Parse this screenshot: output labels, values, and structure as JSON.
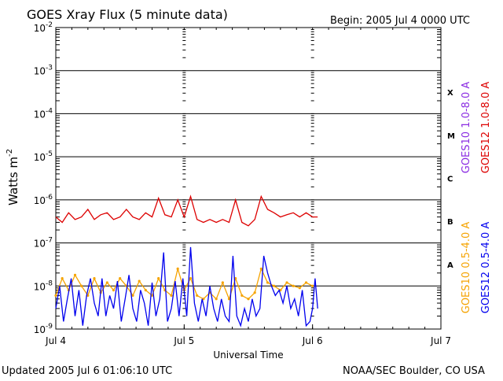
{
  "header": {
    "title": "GOES Xray Flux (5 minute data)",
    "begin": "Begin:  2005 Jul 4 0000 UTC"
  },
  "footer": {
    "updated": "Updated 2005 Jul  6 01:06:10 UTC",
    "credit": "NOAA/SEC Boulder, CO USA"
  },
  "chart_data": {
    "type": "line",
    "title": "GOES Xray Flux (5 minute data)",
    "xlabel": "Universal Time",
    "ylabel_main": "Watts m",
    "ylabel_exp": "-2",
    "yscale": "log",
    "ylim": [
      1e-09,
      0.01
    ],
    "xlim": [
      0,
      3
    ],
    "x_unit": "days since Jul 4 0000 UTC",
    "x_ticks": [
      {
        "x": 0,
        "label": "Jul 4"
      },
      {
        "x": 1,
        "label": "Jul 5"
      },
      {
        "x": 2,
        "label": "Jul 6"
      },
      {
        "x": 3,
        "label": "Jul 7"
      }
    ],
    "y_ticks": [
      {
        "exp": -9,
        "base": "10",
        "sup": "-9"
      },
      {
        "exp": -8,
        "base": "10",
        "sup": "-8"
      },
      {
        "exp": -7,
        "base": "10",
        "sup": "-7"
      },
      {
        "exp": -6,
        "base": "10",
        "sup": "-6"
      },
      {
        "exp": -5,
        "base": "10",
        "sup": "-5"
      },
      {
        "exp": -4,
        "base": "10",
        "sup": "-4"
      },
      {
        "exp": -3,
        "base": "10",
        "sup": "-3"
      },
      {
        "exp": -2,
        "base": "10",
        "sup": "-2"
      }
    ],
    "flare_classes": [
      {
        "label": "A",
        "exp_mid": -7.5
      },
      {
        "label": "B",
        "exp_mid": -6.5
      },
      {
        "label": "C",
        "exp_mid": -5.5
      },
      {
        "label": "M",
        "exp_mid": -4.5
      },
      {
        "label": "X",
        "exp_mid": -3.5
      }
    ],
    "grid": true,
    "legend_right": [
      {
        "name": "GOES10 1.0-8.0 A",
        "color": "#8a2be2"
      },
      {
        "name": "GOES12 1.0-8.0 A",
        "color": "#dd0000"
      },
      {
        "name": "GOES10 0.5-4.0 A",
        "color": "#f5a300"
      },
      {
        "name": "GOES12 0.5-4.0 A",
        "color": "#0000ee"
      }
    ],
    "series": [
      {
        "name": "GOES12 1.0-8.0 A",
        "color": "#dd0000",
        "x": [
          0,
          0.05,
          0.1,
          0.15,
          0.2,
          0.25,
          0.3,
          0.35,
          0.4,
          0.45,
          0.5,
          0.55,
          0.6,
          0.65,
          0.7,
          0.75,
          0.8,
          0.85,
          0.9,
          0.95,
          1.0,
          1.05,
          1.1,
          1.15,
          1.2,
          1.25,
          1.3,
          1.35,
          1.4,
          1.45,
          1.5,
          1.55,
          1.6,
          1.65,
          1.7,
          1.75,
          1.8,
          1.85,
          1.9,
          1.95,
          2.0,
          2.04
        ],
        "values": [
          4e-07,
          3e-07,
          5e-07,
          3.5e-07,
          4e-07,
          6e-07,
          3.5e-07,
          4.5e-07,
          5e-07,
          3.5e-07,
          4e-07,
          6e-07,
          4e-07,
          3.5e-07,
          5e-07,
          4e-07,
          1.1e-06,
          4.5e-07,
          4e-07,
          1e-06,
          4e-07,
          1.2e-06,
          3.5e-07,
          3e-07,
          3.5e-07,
          3e-07,
          3.5e-07,
          3e-07,
          1e-06,
          3e-07,
          2.5e-07,
          3.5e-07,
          1.2e-06,
          6e-07,
          5e-07,
          4e-07,
          4.5e-07,
          5e-07,
          4e-07,
          5e-07,
          4e-07,
          4e-07
        ]
      },
      {
        "name": "GOES10 0.5-4.0 A",
        "color": "#f5a300",
        "x": [
          0,
          0.05,
          0.1,
          0.15,
          0.2,
          0.25,
          0.3,
          0.35,
          0.4,
          0.45,
          0.5,
          0.55,
          0.6,
          0.65,
          0.7,
          0.75,
          0.8,
          0.85,
          0.9,
          0.95,
          1.0,
          1.05,
          1.1,
          1.15,
          1.2,
          1.25,
          1.3,
          1.35,
          1.4,
          1.45,
          1.5,
          1.55,
          1.6,
          1.65,
          1.7,
          1.75,
          1.8,
          1.85,
          1.9,
          1.95,
          2.0
        ],
        "values": [
          6e-09,
          1.5e-08,
          8e-09,
          1.8e-08,
          1e-08,
          6e-09,
          1.5e-08,
          7e-09,
          1.2e-08,
          8e-09,
          1.5e-08,
          1e-08,
          6e-09,
          1.3e-08,
          8e-09,
          6e-09,
          1.5e-08,
          8e-09,
          6e-09,
          2.5e-08,
          8e-09,
          1.5e-08,
          6e-09,
          5e-09,
          7e-09,
          5e-09,
          1.2e-08,
          5e-09,
          1.5e-08,
          6e-09,
          5e-09,
          7e-09,
          2.5e-08,
          1.2e-08,
          1e-08,
          8e-09,
          1.2e-08,
          1e-08,
          9e-09,
          1.2e-08,
          1e-08
        ]
      },
      {
        "name": "GOES12 0.5-4.0 A",
        "color": "#0000ee",
        "x": [
          0,
          0.03,
          0.06,
          0.09,
          0.12,
          0.15,
          0.18,
          0.21,
          0.24,
          0.27,
          0.3,
          0.33,
          0.36,
          0.39,
          0.42,
          0.45,
          0.48,
          0.51,
          0.54,
          0.57,
          0.6,
          0.63,
          0.66,
          0.69,
          0.72,
          0.75,
          0.78,
          0.81,
          0.84,
          0.87,
          0.9,
          0.93,
          0.96,
          0.99,
          1.02,
          1.05,
          1.08,
          1.11,
          1.14,
          1.17,
          1.2,
          1.23,
          1.26,
          1.29,
          1.32,
          1.35,
          1.38,
          1.41,
          1.44,
          1.47,
          1.5,
          1.53,
          1.56,
          1.59,
          1.62,
          1.65,
          1.68,
          1.71,
          1.74,
          1.77,
          1.8,
          1.83,
          1.86,
          1.89,
          1.92,
          1.95,
          1.98,
          2.0,
          2.02,
          2.04
        ],
        "values": [
          3e-09,
          1e-08,
          1.5e-09,
          5e-09,
          1.5e-08,
          2e-09,
          8e-09,
          1.2e-09,
          6e-09,
          1.5e-08,
          4e-09,
          2e-09,
          1.5e-08,
          2e-09,
          6e-09,
          3e-09,
          1.3e-08,
          1.5e-09,
          5e-09,
          1.8e-08,
          3e-09,
          1.5e-09,
          8e-09,
          4e-09,
          1.2e-09,
          1.2e-08,
          2e-09,
          5e-09,
          6e-08,
          1.5e-09,
          3e-09,
          1.3e-08,
          2e-09,
          1.5e-08,
          2e-09,
          8e-08,
          4e-09,
          1.5e-09,
          5e-09,
          2e-09,
          1e-08,
          3e-09,
          1.5e-09,
          5e-09,
          2e-09,
          1.5e-09,
          5e-08,
          2e-09,
          1.2e-09,
          3e-09,
          1.5e-09,
          5e-09,
          2e-09,
          3e-09,
          5e-08,
          2e-08,
          1e-08,
          6e-09,
          8e-09,
          4e-09,
          1e-08,
          3e-09,
          5e-09,
          2e-09,
          8e-09,
          1.2e-09,
          1.5e-09,
          3e-09,
          1.5e-08,
          3e-09
        ]
      }
    ]
  }
}
